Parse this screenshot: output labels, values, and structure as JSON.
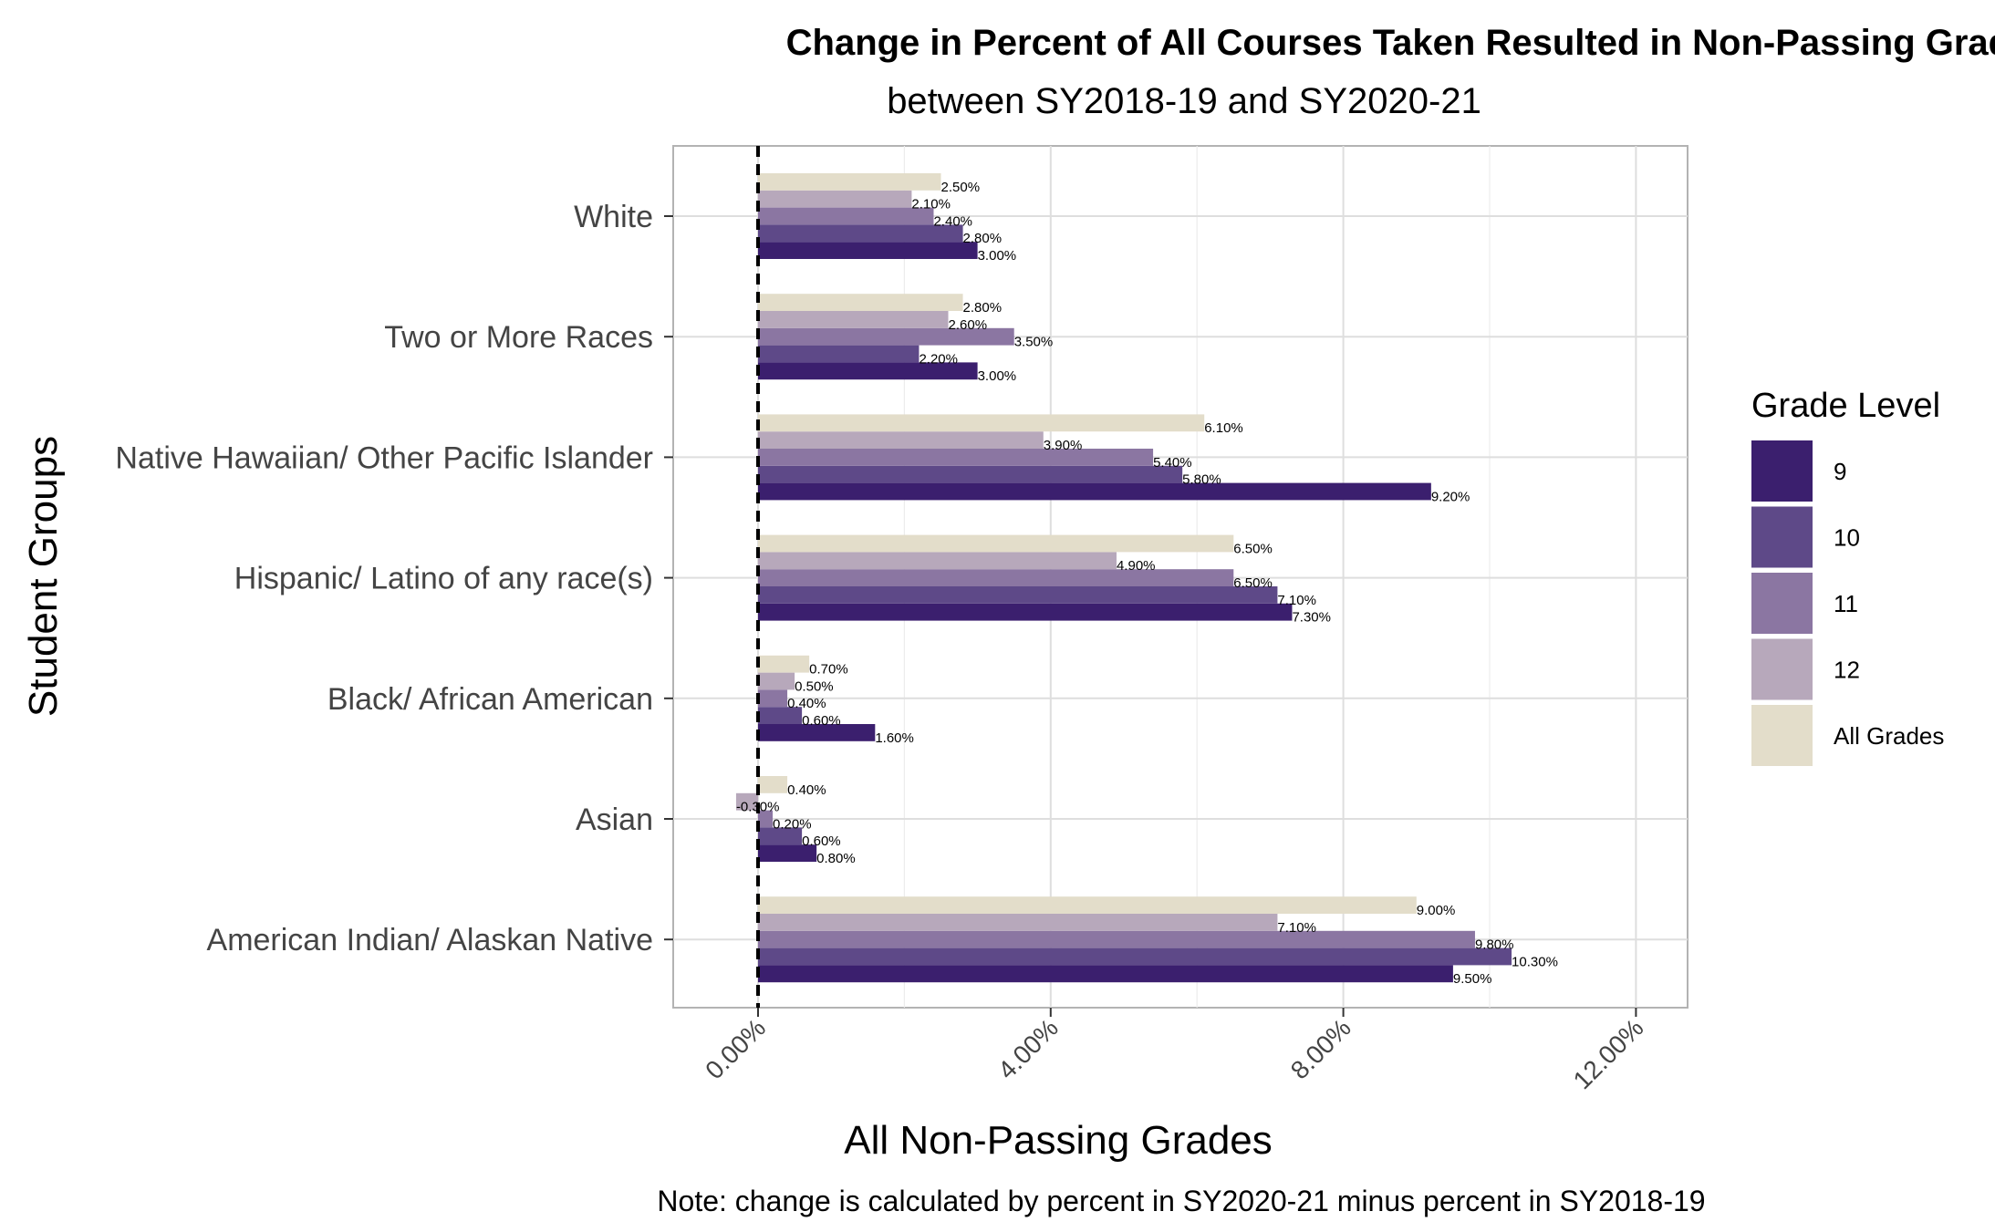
{
  "chart_data": {
    "type": "bar",
    "orientation": "horizontal",
    "title": "Change in Percent of All Courses Taken Resulted in Non-Passing Grade",
    "subtitle": "between SY2018-19 and SY2020-21",
    "xlabel": "All Non-Passing Grades",
    "ylabel": "Student Groups",
    "note": "Note: change is calculated by percent in SY2020-21 minus percent in SY2018-19",
    "xlim": [
      -1.1,
      12.7
    ],
    "xticks": [
      0,
      4,
      8,
      12
    ],
    "xtick_labels": [
      "0.00%",
      "4.00%",
      "8.00%",
      "12.00%"
    ],
    "grid": true,
    "reference_line": 0,
    "legend": {
      "title": "Grade Level",
      "position": "right"
    },
    "categories": [
      "White",
      "Two or More Races",
      "Native Hawaiian/ Other Pacific Islander",
      "Hispanic/ Latino of any race(s)",
      "Black/ African American",
      "Asian",
      "American Indian/ Alaskan Native"
    ],
    "series": [
      {
        "name": "9",
        "color": "#3b1f6e",
        "values": [
          3.0,
          3.0,
          9.2,
          7.3,
          1.6,
          0.8,
          9.5
        ],
        "labels": [
          "3.00%",
          "3.00%",
          "9.20%",
          "7.30%",
          "1.60%",
          "0.80%",
          "9.50%"
        ]
      },
      {
        "name": "10",
        "color": "#5e4988",
        "values": [
          2.8,
          2.2,
          5.8,
          7.1,
          0.6,
          0.6,
          10.3
        ],
        "labels": [
          "2.80%",
          "2.20%",
          "5.80%",
          "7.10%",
          "0.60%",
          "0.60%",
          "10.30%"
        ]
      },
      {
        "name": "11",
        "color": "#8b76a2",
        "values": [
          2.4,
          3.5,
          5.4,
          6.5,
          0.4,
          0.2,
          9.8
        ],
        "labels": [
          "2.40%",
          "3.50%",
          "5.40%",
          "6.50%",
          "0.40%",
          "0.20%",
          "9.80%"
        ]
      },
      {
        "name": "12",
        "color": "#b7a8bb",
        "values": [
          2.1,
          2.6,
          3.9,
          4.9,
          0.5,
          -0.3,
          7.1
        ],
        "labels": [
          "2.10%",
          "2.60%",
          "3.90%",
          "4.90%",
          "0.50%",
          "-0.30%",
          "7.10%"
        ]
      },
      {
        "name": "All Grades",
        "color": "#e3ddca",
        "values": [
          2.5,
          2.8,
          6.1,
          6.5,
          0.7,
          0.4,
          9.0
        ],
        "labels": [
          "2.50%",
          "2.80%",
          "6.10%",
          "6.50%",
          "0.70%",
          "0.40%",
          "9.00%"
        ]
      }
    ]
  }
}
